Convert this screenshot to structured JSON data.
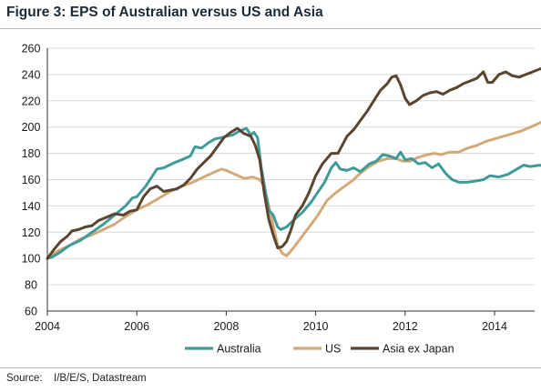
{
  "figure": {
    "title": "Figure 3: EPS of Australian versus US and Asia",
    "source_label": "Source:",
    "source_text": "I/B/E/S, Datastream"
  },
  "chart_data": {
    "type": "line",
    "title": "Figure 3: EPS of Australian versus US and Asia",
    "xlabel": "",
    "ylabel": "",
    "xlim": [
      2004.0,
      2014.9
    ],
    "ylim": [
      60,
      260
    ],
    "x_ticks": [
      2004,
      2006,
      2008,
      2010,
      2012,
      2014
    ],
    "x_tick_labels": [
      "2004",
      "2006",
      "2008",
      "2010",
      "2012",
      "2014"
    ],
    "y_ticks": [
      60,
      80,
      100,
      120,
      140,
      160,
      180,
      200,
      220,
      240,
      260
    ],
    "y_tick_labels": [
      "60",
      "80",
      "100",
      "120",
      "140",
      "160",
      "180",
      "200",
      "220",
      "240",
      "260"
    ],
    "grid": "horizontal",
    "legend_position": "bottom",
    "series": [
      {
        "name": "Australia",
        "color": "#3f9a9a",
        "points": [
          [
            2004.0,
            100
          ],
          [
            2004.1,
            101
          ],
          [
            2004.25,
            104
          ],
          [
            2004.5,
            110
          ],
          [
            2004.75,
            114
          ],
          [
            2005.0,
            120
          ],
          [
            2005.25,
            126
          ],
          [
            2005.5,
            133
          ],
          [
            2005.75,
            140
          ],
          [
            2005.9,
            146
          ],
          [
            2006.0,
            147
          ],
          [
            2006.2,
            155
          ],
          [
            2006.45,
            168
          ],
          [
            2006.6,
            169
          ],
          [
            2006.85,
            173
          ],
          [
            2007.0,
            175
          ],
          [
            2007.2,
            178
          ],
          [
            2007.3,
            185
          ],
          [
            2007.45,
            184
          ],
          [
            2007.6,
            188
          ],
          [
            2007.75,
            191
          ],
          [
            2007.9,
            192
          ],
          [
            2008.0,
            193
          ],
          [
            2008.15,
            194
          ],
          [
            2008.3,
            197
          ],
          [
            2008.45,
            199
          ],
          [
            2008.55,
            194
          ],
          [
            2008.62,
            196
          ],
          [
            2008.7,
            192
          ],
          [
            2008.78,
            170
          ],
          [
            2008.88,
            150
          ],
          [
            2008.95,
            137
          ],
          [
            2009.05,
            133
          ],
          [
            2009.15,
            124
          ],
          [
            2009.22,
            122
          ],
          [
            2009.35,
            124
          ],
          [
            2009.5,
            129
          ],
          [
            2009.7,
            135
          ],
          [
            2009.9,
            143
          ],
          [
            2010.0,
            148
          ],
          [
            2010.2,
            158
          ],
          [
            2010.35,
            169
          ],
          [
            2010.45,
            173
          ],
          [
            2010.55,
            168
          ],
          [
            2010.7,
            167
          ],
          [
            2010.85,
            169
          ],
          [
            2011.0,
            166
          ],
          [
            2011.2,
            172
          ],
          [
            2011.35,
            174
          ],
          [
            2011.5,
            179
          ],
          [
            2011.65,
            178
          ],
          [
            2011.8,
            176
          ],
          [
            2011.9,
            181
          ],
          [
            2012.0,
            175
          ],
          [
            2012.15,
            176
          ],
          [
            2012.3,
            172
          ],
          [
            2012.45,
            173
          ],
          [
            2012.6,
            169
          ],
          [
            2012.75,
            172
          ],
          [
            2012.9,
            165
          ],
          [
            2013.05,
            160
          ],
          [
            2013.2,
            158
          ],
          [
            2013.4,
            158
          ],
          [
            2013.6,
            159
          ],
          [
            2013.75,
            160
          ],
          [
            2013.9,
            163
          ],
          [
            2014.1,
            162
          ],
          [
            2014.3,
            164
          ],
          [
            2014.5,
            168
          ],
          [
            2014.65,
            171
          ],
          [
            2014.8,
            170
          ],
          [
            2015.0,
            171
          ],
          [
            2015.2,
            170
          ],
          [
            2015.38,
            172
          ],
          [
            2015.47,
            171
          ]
        ]
      },
      {
        "name": "US",
        "color": "#d4a978",
        "points": [
          [
            2004.0,
            100
          ],
          [
            2004.25,
            106
          ],
          [
            2004.5,
            110
          ],
          [
            2004.75,
            115
          ],
          [
            2005.0,
            118
          ],
          [
            2005.25,
            122
          ],
          [
            2005.5,
            126
          ],
          [
            2005.75,
            132
          ],
          [
            2006.0,
            137
          ],
          [
            2006.25,
            141
          ],
          [
            2006.5,
            146
          ],
          [
            2006.75,
            151
          ],
          [
            2007.0,
            155
          ],
          [
            2007.25,
            158
          ],
          [
            2007.5,
            162
          ],
          [
            2007.75,
            166
          ],
          [
            2007.9,
            168
          ],
          [
            2008.0,
            167
          ],
          [
            2008.2,
            164
          ],
          [
            2008.4,
            161
          ],
          [
            2008.6,
            162
          ],
          [
            2008.75,
            160
          ],
          [
            2008.85,
            155
          ],
          [
            2008.95,
            140
          ],
          [
            2009.05,
            125
          ],
          [
            2009.15,
            110
          ],
          [
            2009.25,
            104
          ],
          [
            2009.35,
            102
          ],
          [
            2009.5,
            108
          ],
          [
            2009.7,
            117
          ],
          [
            2009.9,
            126
          ],
          [
            2010.05,
            133
          ],
          [
            2010.25,
            144
          ],
          [
            2010.45,
            150
          ],
          [
            2010.65,
            155
          ],
          [
            2010.85,
            160
          ],
          [
            2011.0,
            165
          ],
          [
            2011.2,
            170
          ],
          [
            2011.4,
            174
          ],
          [
            2011.6,
            176
          ],
          [
            2011.8,
            176
          ],
          [
            2011.95,
            174
          ],
          [
            2012.1,
            174
          ],
          [
            2012.3,
            177
          ],
          [
            2012.5,
            179
          ],
          [
            2012.65,
            180
          ],
          [
            2012.8,
            179
          ],
          [
            2013.0,
            181
          ],
          [
            2013.2,
            181
          ],
          [
            2013.4,
            184
          ],
          [
            2013.6,
            186
          ],
          [
            2013.8,
            189
          ],
          [
            2014.0,
            191
          ],
          [
            2014.2,
            193
          ],
          [
            2014.4,
            195
          ],
          [
            2014.6,
            197
          ],
          [
            2014.8,
            200
          ],
          [
            2015.0,
            203
          ],
          [
            2015.2,
            206
          ],
          [
            2015.35,
            209
          ],
          [
            2015.47,
            207
          ]
        ]
      },
      {
        "name": "Asia ex Japan",
        "color": "#5a4530",
        "points": [
          [
            2004.0,
            100
          ],
          [
            2004.15,
            107
          ],
          [
            2004.3,
            113
          ],
          [
            2004.45,
            117
          ],
          [
            2004.55,
            121
          ],
          [
            2004.7,
            122
          ],
          [
            2004.85,
            124
          ],
          [
            2005.0,
            125
          ],
          [
            2005.15,
            129
          ],
          [
            2005.3,
            131
          ],
          [
            2005.5,
            134
          ],
          [
            2005.7,
            133
          ],
          [
            2005.85,
            136
          ],
          [
            2006.0,
            137
          ],
          [
            2006.15,
            147
          ],
          [
            2006.3,
            153
          ],
          [
            2006.45,
            155
          ],
          [
            2006.6,
            151
          ],
          [
            2006.75,
            152
          ],
          [
            2006.9,
            153
          ],
          [
            2007.05,
            156
          ],
          [
            2007.2,
            161
          ],
          [
            2007.35,
            168
          ],
          [
            2007.5,
            173
          ],
          [
            2007.65,
            178
          ],
          [
            2007.8,
            185
          ],
          [
            2007.95,
            192
          ],
          [
            2008.1,
            196
          ],
          [
            2008.25,
            199
          ],
          [
            2008.4,
            195
          ],
          [
            2008.55,
            193
          ],
          [
            2008.65,
            186
          ],
          [
            2008.75,
            175
          ],
          [
            2008.85,
            150
          ],
          [
            2008.95,
            130
          ],
          [
            2009.05,
            118
          ],
          [
            2009.15,
            108
          ],
          [
            2009.25,
            109
          ],
          [
            2009.35,
            113
          ],
          [
            2009.45,
            122
          ],
          [
            2009.55,
            133
          ],
          [
            2009.7,
            140
          ],
          [
            2009.85,
            150
          ],
          [
            2010.0,
            163
          ],
          [
            2010.15,
            172
          ],
          [
            2010.35,
            180
          ],
          [
            2010.5,
            180
          ],
          [
            2010.7,
            193
          ],
          [
            2010.85,
            198
          ],
          [
            2011.0,
            205
          ],
          [
            2011.15,
            212
          ],
          [
            2011.3,
            220
          ],
          [
            2011.45,
            228
          ],
          [
            2011.6,
            233
          ],
          [
            2011.7,
            238
          ],
          [
            2011.8,
            239
          ],
          [
            2011.9,
            232
          ],
          [
            2012.0,
            222
          ],
          [
            2012.1,
            217
          ],
          [
            2012.25,
            220
          ],
          [
            2012.4,
            224
          ],
          [
            2012.55,
            226
          ],
          [
            2012.7,
            227
          ],
          [
            2012.85,
            225
          ],
          [
            2013.0,
            228
          ],
          [
            2013.15,
            230
          ],
          [
            2013.3,
            233
          ],
          [
            2013.45,
            235
          ],
          [
            2013.6,
            237
          ],
          [
            2013.75,
            242
          ],
          [
            2013.85,
            234
          ],
          [
            2013.95,
            234
          ],
          [
            2014.1,
            240
          ],
          [
            2014.25,
            242
          ],
          [
            2014.4,
            239
          ],
          [
            2014.55,
            238
          ],
          [
            2014.7,
            240
          ],
          [
            2014.85,
            242
          ],
          [
            2015.0,
            244
          ],
          [
            2015.15,
            246
          ],
          [
            2015.3,
            247
          ],
          [
            2015.47,
            245
          ]
        ]
      }
    ]
  }
}
